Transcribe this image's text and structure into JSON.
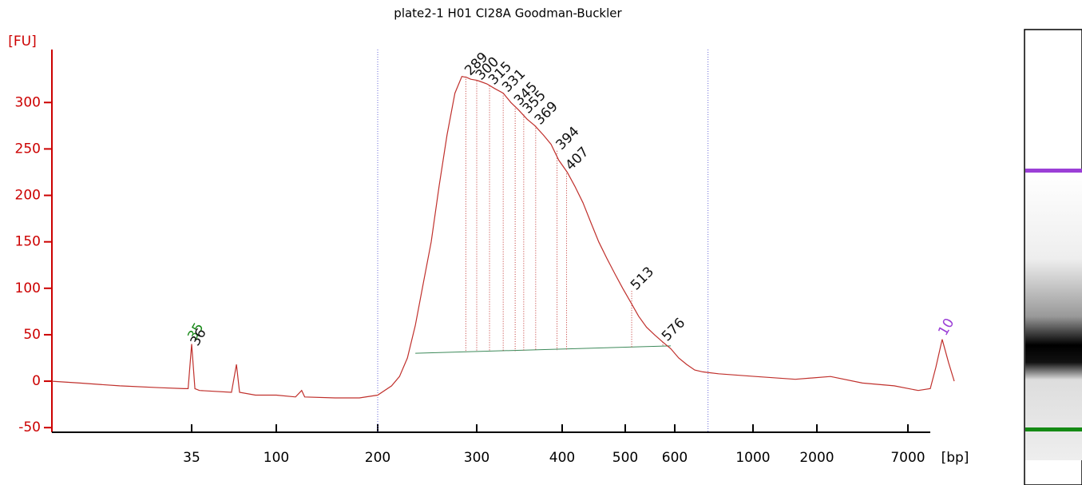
{
  "chart_data": {
    "type": "line",
    "title": "plate2-1 H01 CI28A Goodman-Buckler",
    "y_label": "[FU]",
    "x_label": "[bp]",
    "color": "#c0302c",
    "axis_color": "#cc0000",
    "x": [
      15,
      19,
      24.7,
      30.4,
      33.9,
      34.5,
      35,
      37.5,
      41,
      65.6,
      69.4,
      71.8,
      84,
      100,
      119,
      125,
      128,
      158,
      182,
      200,
      214,
      222,
      230,
      238,
      246,
      254,
      262,
      270,
      278,
      285,
      290,
      294,
      300,
      303,
      312,
      321,
      331,
      340,
      349,
      359,
      368,
      378,
      387,
      396,
      408,
      420,
      433,
      446,
      458,
      471,
      484,
      496,
      511,
      527,
      543,
      559,
      576,
      592,
      620,
      661,
      702,
      743,
      824,
      1037,
      1662,
      2745,
      4500,
      6250,
      7780,
      8690,
      9110,
      9590,
      10070,
      10500
    ],
    "values": [
      0,
      -2,
      -5,
      -7,
      -8,
      -8,
      40,
      -8,
      -10,
      -12,
      18,
      -12,
      -15,
      -15,
      -17,
      -10,
      -17,
      -18,
      -18,
      -15,
      -5,
      5,
      25,
      60,
      105,
      150,
      210,
      265,
      310,
      328,
      327,
      325,
      324,
      323,
      320,
      315,
      310,
      300,
      292,
      282,
      275,
      265,
      255,
      238,
      225,
      210,
      192,
      170,
      150,
      132,
      115,
      100,
      85,
      70,
      58,
      50,
      42,
      35,
      25,
      18,
      12,
      10,
      8,
      5,
      2,
      5,
      -2,
      -5,
      -10,
      -8,
      15,
      45,
      20,
      0
    ],
    "xlim": [
      15,
      10500
    ],
    "xticks": [
      35,
      100,
      200,
      300,
      400,
      500,
      600,
      1000,
      2000,
      7000
    ],
    "ylim": [
      -55,
      357
    ],
    "yticks": [
      -50,
      0,
      50,
      100,
      150,
      200,
      250,
      300
    ],
    "region": [
      200,
      770
    ],
    "baseline": {
      "x": [
        238,
        592
      ],
      "y": [
        30,
        38
      ]
    },
    "peaks": {
      "x": [
        289,
        300,
        315,
        331,
        345,
        355,
        369,
        394,
        407,
        513,
        576
      ],
      "y": [
        328,
        323,
        318,
        310,
        296,
        287,
        275,
        248,
        226,
        97,
        42
      ]
    },
    "markers": [
      {
        "label": "35",
        "x": 35,
        "y": 40,
        "color": "#1a8a1a"
      },
      {
        "label": "36",
        "x": 37,
        "y": 34,
        "color": "#111111"
      },
      {
        "label": "10",
        "x": 9590,
        "y": 45,
        "color": "#9b3fd6"
      }
    ]
  }
}
